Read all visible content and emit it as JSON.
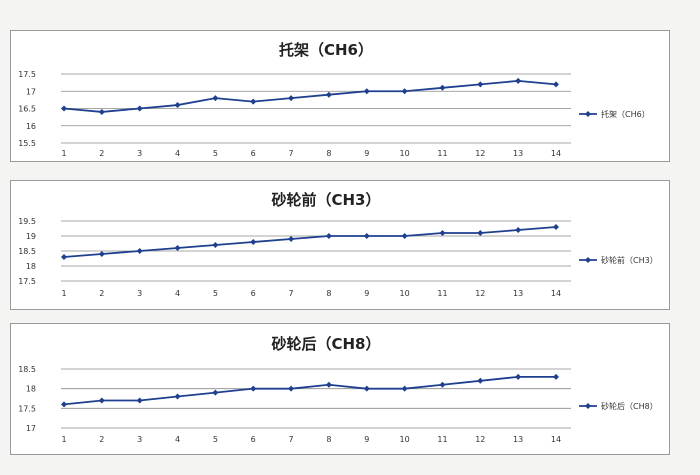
{
  "colors": {
    "series": "#1f3f8f",
    "grid": "#8a8a8a",
    "panel_bg": "#ffffff"
  },
  "chart_data": [
    {
      "type": "line",
      "title": "托架（CH6）",
      "categories": [
        "1",
        "2",
        "3",
        "4",
        "5",
        "6",
        "7",
        "8",
        "9",
        "10",
        "11",
        "12",
        "13",
        "14"
      ],
      "series": [
        {
          "name": "托架（CH6）",
          "values": [
            16.5,
            16.4,
            16.5,
            16.6,
            16.8,
            16.7,
            16.8,
            16.9,
            17.0,
            17.0,
            17.1,
            17.2,
            17.3,
            17.2
          ]
        }
      ],
      "ylim": [
        15.5,
        17.5
      ],
      "yticks": [
        "15.5",
        "16",
        "16.5",
        "17",
        "17.5"
      ],
      "grid": true,
      "legend": "right"
    },
    {
      "type": "line",
      "title": "砂轮前（CH3）",
      "categories": [
        "1",
        "2",
        "3",
        "4",
        "5",
        "6",
        "7",
        "8",
        "9",
        "10",
        "11",
        "12",
        "13",
        "14"
      ],
      "series": [
        {
          "name": "砂轮前（CH3）",
          "values": [
            18.3,
            18.4,
            18.5,
            18.6,
            18.7,
            18.8,
            18.9,
            19.0,
            19.0,
            19.0,
            19.1,
            19.1,
            19.2,
            19.3
          ]
        }
      ],
      "ylim": [
        17.5,
        19.5
      ],
      "yticks": [
        "17.5",
        "18",
        "18.5",
        "19",
        "19.5"
      ],
      "grid": true,
      "legend": "right"
    },
    {
      "type": "line",
      "title": "砂轮后（CH8）",
      "categories": [
        "1",
        "2",
        "3",
        "4",
        "5",
        "6",
        "7",
        "8",
        "9",
        "10",
        "11",
        "12",
        "13",
        "14"
      ],
      "series": [
        {
          "name": "砂轮后（CH8）",
          "values": [
            17.6,
            17.7,
            17.7,
            17.8,
            17.9,
            18.0,
            18.0,
            18.1,
            18.0,
            18.0,
            18.1,
            18.2,
            18.3,
            18.3
          ]
        }
      ],
      "ylim": [
        17,
        18.5
      ],
      "yticks": [
        "17",
        "17.5",
        "18",
        "18.5"
      ],
      "grid": true,
      "legend": "right"
    }
  ]
}
